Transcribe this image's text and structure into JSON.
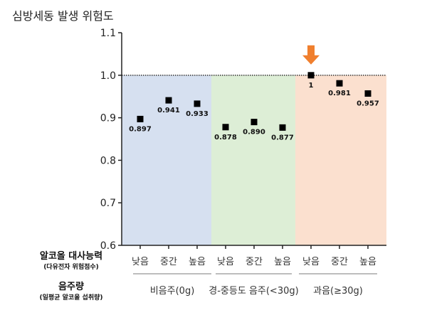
{
  "chart_data": {
    "type": "scatter",
    "title": "심방세동 발생 위험도",
    "ylim": [
      0.6,
      1.1
    ],
    "yticks": [
      "0.6",
      "0.7",
      "0.8",
      "0.9",
      "1.0",
      "1.1"
    ],
    "reference_line": 1.0,
    "categories": [
      "낮음",
      "중간",
      "높음",
      "낮음",
      "중간",
      "높음",
      "낮음",
      "중간",
      "높음"
    ],
    "values": [
      0.897,
      0.941,
      0.933,
      0.878,
      0.89,
      0.877,
      1,
      0.981,
      0.957
    ],
    "data_labels": [
      "0.897",
      "0.941",
      "0.933",
      "0.878",
      "0.890",
      "0.877",
      "1",
      "0.981",
      "0.957"
    ],
    "groups": [
      {
        "label": "비음주(0g)",
        "color": "#d6e0f0"
      },
      {
        "label": "경-중등도 음주(<30g)",
        "color": "#ddeed6"
      },
      {
        "label": "과음(≥30g)",
        "color": "#fbe0cf"
      }
    ],
    "row_labels": {
      "metabolism": {
        "title": "알코올 대사능력",
        "subtitle": "(다유전자 위험점수)"
      },
      "intake": {
        "title": "음주량",
        "subtitle": "(일평균 알코올 섭취량)"
      }
    },
    "highlight": {
      "index": 6,
      "icon": "arrow-down-icon",
      "color": "#f07f2e"
    },
    "marker_color": "#000000"
  }
}
